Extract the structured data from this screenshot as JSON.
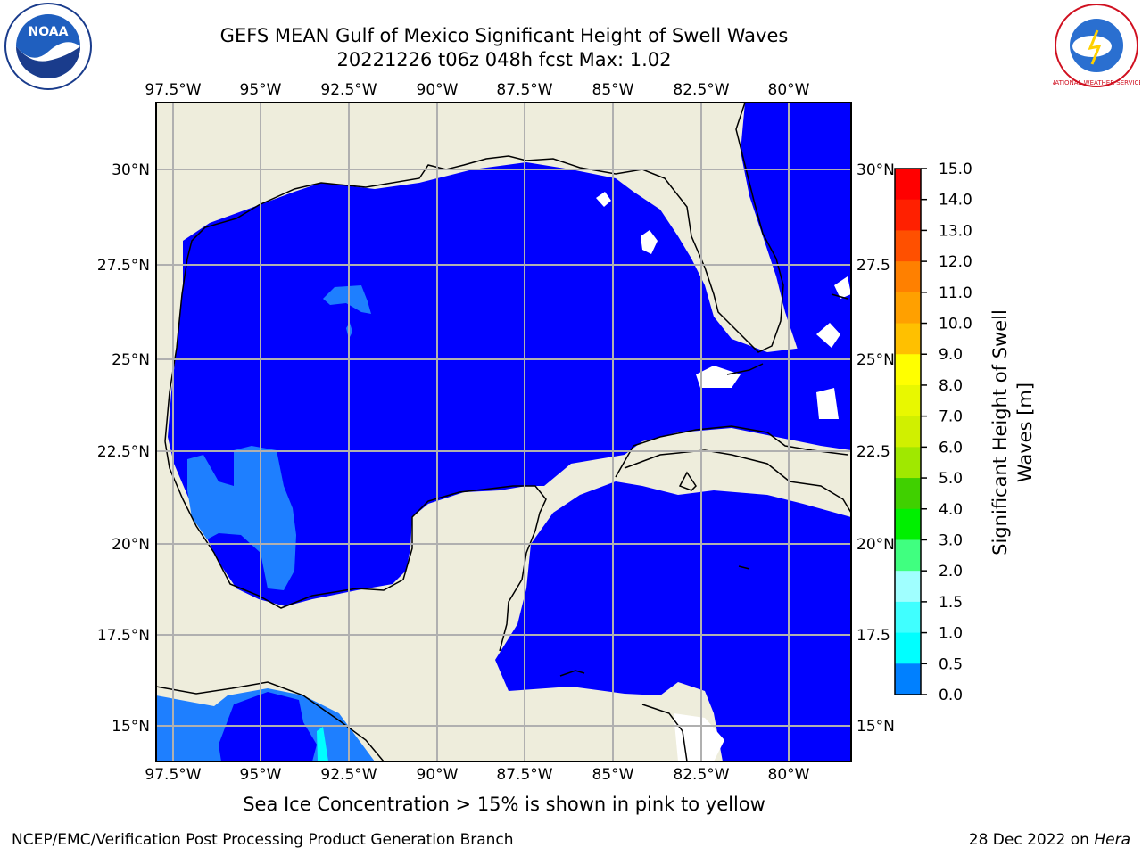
{
  "title_line1": "GEFS MEAN Gulf of Mexico Significant Height of Swell Waves",
  "title_line2": "20221226 t06z 048h fcst   Max: 1.02",
  "logos": {
    "left": "NOAA",
    "right": "NATIONAL WEATHER SERVICE"
  },
  "map": {
    "lon_labels": [
      "97.5°W",
      "95°W",
      "92.5°W",
      "90°W",
      "87.5°W",
      "85°W",
      "82.5°W",
      "80°W"
    ],
    "lat_labels": [
      "30°N",
      "27.5°N",
      "25°N",
      "22.5°N",
      "20°N",
      "17.5°N",
      "15°N"
    ],
    "lat_labels_right": [
      "30°N",
      "27.5",
      "25°N",
      "22.5",
      "20°N",
      "17.5",
      "15°N"
    ],
    "land_color": "#eeeddc",
    "ocean_color": "#0000ff"
  },
  "colorbar": {
    "label_line1": "Significant Height of Swell",
    "label_line2": "Waves [m]",
    "ticks": [
      "15.0",
      "14.0",
      "13.0",
      "12.0",
      "11.0",
      "10.0",
      "9.0",
      "8.0",
      "7.0",
      "6.0",
      "5.0",
      "4.0",
      "3.0",
      "2.0",
      "1.5",
      "1.0",
      "0.5",
      "0.0"
    ],
    "colors": [
      "#ff0000",
      "#ff2000",
      "#ff5000",
      "#ff8000",
      "#ffa000",
      "#ffc000",
      "#ffff00",
      "#e8f800",
      "#d0f000",
      "#a0e800",
      "#40d000",
      "#00f000",
      "#40ff80",
      "#a0ffff",
      "#40ffff",
      "#00ffff",
      "#0080ff",
      "#0000ff"
    ]
  },
  "subtitle": "Sea Ice Concentration > 15% is shown in pink to yellow",
  "footer_left": "NCEP/EMC/Verification Post Processing Product Generation Branch",
  "footer_right_date": "28 Dec 2022 on ",
  "footer_right_host": "Hera"
}
